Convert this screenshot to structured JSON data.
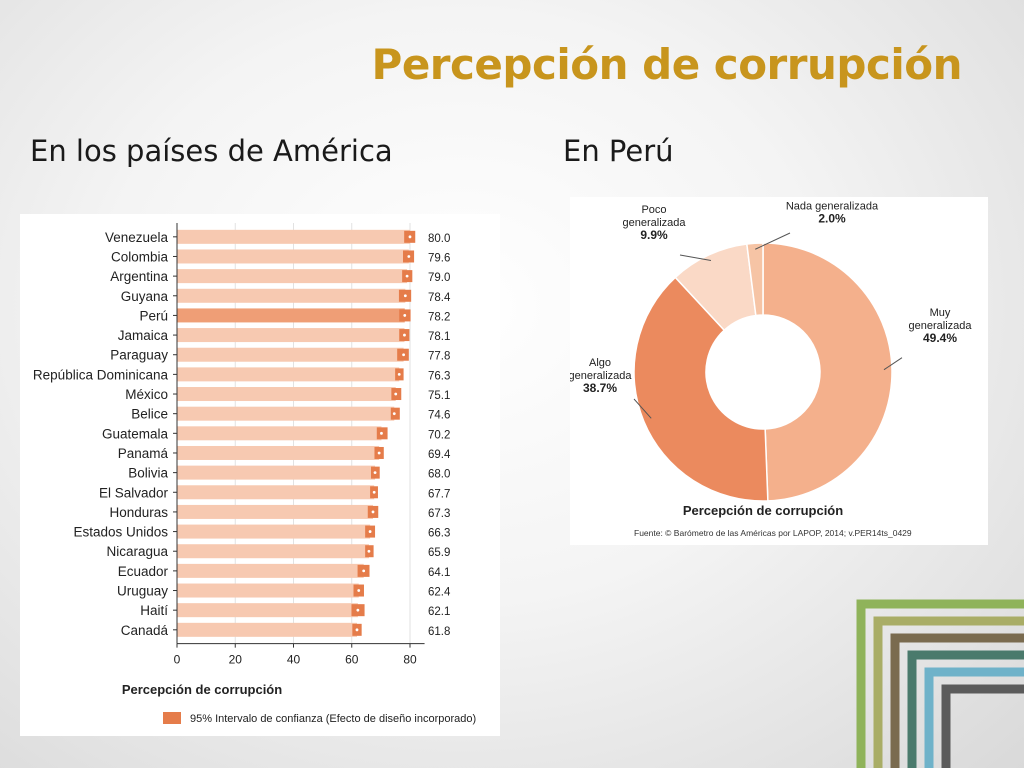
{
  "title": "Percepción de corrupción",
  "subtitles": {
    "left": "En los países de América",
    "right": "En Perú"
  },
  "chart_data": [
    {
      "type": "bar",
      "orientation": "horizontal",
      "categories": [
        "Venezuela",
        "Colombia",
        "Argentina",
        "Guyana",
        "Perú",
        "Jamaica",
        "Paraguay",
        "República Dominicana",
        "México",
        "Belice",
        "Guatemala",
        "Panamá",
        "Bolivia",
        "El Salvador",
        "Honduras",
        "Estados Unidos",
        "Nicaragua",
        "Ecuador",
        "Uruguay",
        "Haití",
        "Canadá"
      ],
      "values": [
        80.0,
        79.6,
        79.0,
        78.4,
        78.2,
        78.1,
        77.8,
        76.3,
        75.1,
        74.6,
        70.2,
        69.4,
        68.0,
        67.7,
        67.3,
        66.3,
        65.9,
        64.1,
        62.4,
        62.1,
        61.8
      ],
      "value_labels": [
        "80.0",
        "79.6",
        "79.0",
        "78.4",
        "78.2",
        "78.1",
        "77.8",
        "76.3",
        "75.1",
        "74.6",
        "70.2",
        "69.4",
        "68.0",
        "67.7",
        "67.3",
        "66.3",
        "65.9",
        "64.1",
        "62.4",
        "62.1",
        "61.8"
      ],
      "ci_lower": [
        78.0,
        77.6,
        77.3,
        76.2,
        76.3,
        76.3,
        75.6,
        74.9,
        73.6,
        73.4,
        68.6,
        67.8,
        66.6,
        66.3,
        65.5,
        64.6,
        64.6,
        62.0,
        60.6,
        59.9,
        60.2
      ],
      "ci_upper": [
        81.8,
        81.4,
        80.8,
        80.4,
        80.2,
        79.8,
        79.6,
        77.8,
        77.0,
        76.5,
        72.3,
        71.0,
        69.6,
        69.0,
        69.1,
        68.0,
        67.5,
        66.1,
        64.2,
        64.4,
        63.4
      ],
      "highlight": "Perú",
      "xlim": [
        0,
        85
      ],
      "xticks": [
        "0",
        "20",
        "40",
        "60",
        "80"
      ],
      "xtick_values": [
        0,
        20,
        40,
        60,
        80
      ],
      "xlabel": "Percepción de corrupción",
      "legend": "95% Intervalo de confianza (Efecto de diseño incorporado)",
      "legend_placement": "bottom",
      "colors": {
        "bar": "#f7c9b1",
        "bar_highlight": "#ef9e76",
        "ci": "#e57c4a",
        "ci_dot": "#ffffff"
      }
    },
    {
      "type": "pie",
      "style": "donut",
      "title": "Percepción de corrupción",
      "source": "Fuente: © Barómetro de las Américas por LAPOP, 2014; v.PER14ts_0429",
      "slices": [
        {
          "label_lines": [
            "Muy",
            "generalizada"
          ],
          "value": 49.4,
          "value_label": "49.4%",
          "color": "#f4b08c"
        },
        {
          "label_lines": [
            "Algo",
            "generalizada"
          ],
          "value": 38.7,
          "value_label": "38.7%",
          "color": "#eb8a5e"
        },
        {
          "label_lines": [
            "Poco",
            "generalizada"
          ],
          "value": 9.9,
          "value_label": "9.9%",
          "color": "#fad9c6"
        },
        {
          "label_lines": [
            "Nada generalizada"
          ],
          "value": 2.0,
          "value_label": "2.0%",
          "color": "#f6c4a5"
        }
      ]
    }
  ],
  "decor_colors": [
    "#8fb35a",
    "#a9ad66",
    "#7a6b4f",
    "#4a7a6c",
    "#6fb2c9",
    "#5b5b5b"
  ]
}
